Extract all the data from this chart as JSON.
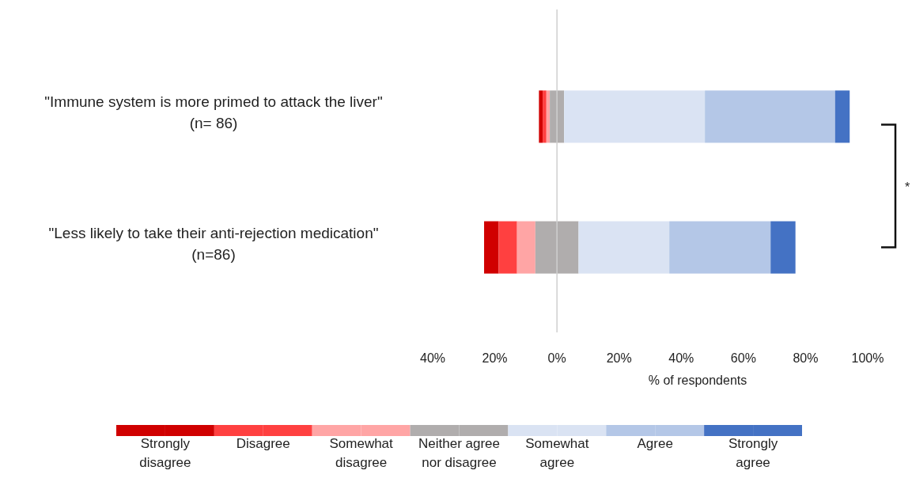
{
  "chart_data": {
    "type": "bar",
    "orientation": "horizontal",
    "categories": [
      "\"Immune system is more primed to attack the liver\"\n(n= 86)",
      "\"Less likely to take their anti-rejection medication\"\n(n=86)"
    ],
    "series": [
      {
        "name": "Strongly disagree",
        "color": "#d00000",
        "values": [
          1.2,
          4.7
        ],
        "base": [
          -5.8,
          -23.45
        ]
      },
      {
        "name": "Disagree",
        "color": "#ff4040",
        "values": [
          1.2,
          5.9
        ],
        "base": [
          -4.6,
          -18.75
        ]
      },
      {
        "name": "Somewhat disagree",
        "color": "#ffa5a5",
        "values": [
          1.1,
          5.9
        ],
        "base": [
          -3.4,
          -12.85
        ]
      },
      {
        "name": "Neither agree nor disagree",
        "color": "#b0adad",
        "values": [
          4.6,
          13.9
        ],
        "base": [
          -2.3,
          -6.95
        ]
      },
      {
        "name": "Somewhat agree",
        "color": "#dae3f3",
        "values": [
          45.3,
          29.2
        ],
        "base": [
          2.3,
          6.95
        ]
      },
      {
        "name": "Agree",
        "color": "#b4c7e7",
        "values": [
          41.9,
          32.6
        ],
        "base": [
          47.6,
          36.15
        ]
      },
      {
        "name": "Strongly agree",
        "color": "#4472c4",
        "values": [
          4.7,
          8.0
        ],
        "base": [
          89.5,
          68.75
        ]
      }
    ],
    "xlim": [
      -40,
      100
    ],
    "xticks": [
      {
        "value": -40,
        "label": "40%"
      },
      {
        "value": -20,
        "label": "20%"
      },
      {
        "value": 0,
        "label": "0%"
      },
      {
        "value": 20,
        "label": "20%"
      },
      {
        "value": 40,
        "label": "40%"
      },
      {
        "value": 60,
        "label": "60%"
      },
      {
        "value": 80,
        "label": "80%"
      },
      {
        "value": 100,
        "label": "100%"
      }
    ],
    "xlabel": "% of respondents",
    "legend": "bottom",
    "ref_lines": [
      {
        "axis": "x",
        "value": 0,
        "color": "#cfcfcf"
      }
    ],
    "annotations": [
      "*"
    ]
  }
}
